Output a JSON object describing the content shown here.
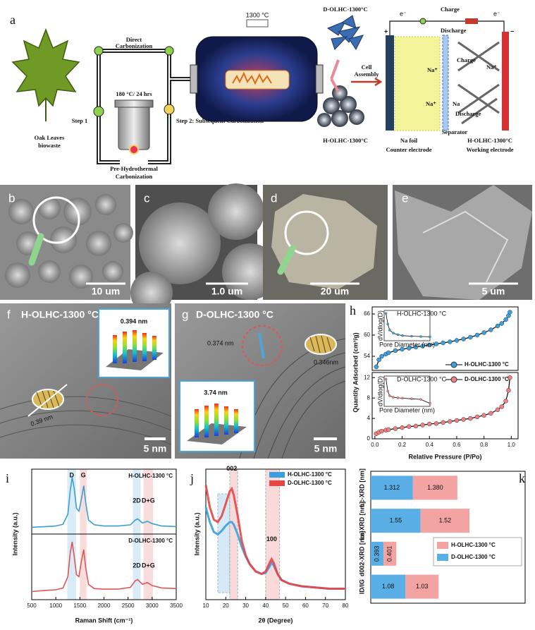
{
  "panel_a": {
    "label": "a",
    "leaf": [
      "Oak Leaves",
      "biowaste"
    ],
    "direct": [
      "Direct",
      "Carbonization"
    ],
    "step1": "Step 1",
    "condition": "180 °C/ 24 hrs",
    "pre_htc": [
      "Pre-Hydrothermal",
      "Carbonization"
    ],
    "step2": "Step 2: Subsequent Carbonization",
    "furnace_temp": "1300 °C",
    "d_product": "D-OLHC-1300°C",
    "h_product": "H-OLHC-1300°C",
    "cell_assembly": [
      "Cell",
      "Assembly"
    ],
    "electron": "e⁻",
    "charge": "Charge",
    "discharge": "Discharge",
    "plus": "+",
    "minus": "−",
    "na_ion": "Na⁺",
    "na": "Na",
    "na_foil": "Na foil",
    "counter": "Counter electrode",
    "separator": "Separator",
    "working_material": "H-OLHC-1300°C",
    "working": "Working electrode"
  },
  "panel_b": {
    "label": "b",
    "scale": "10 um"
  },
  "panel_c": {
    "label": "c",
    "scale": "1.0 um"
  },
  "panel_d": {
    "label": "d",
    "scale": "20 um"
  },
  "panel_e": {
    "label": "e",
    "scale": "5 um"
  },
  "panel_f": {
    "label": "f",
    "title": "H-OLHC-1300 °C",
    "inset_spacing": "0.394 nm",
    "fringe": "0.39 nm",
    "scale": "5 nm"
  },
  "panel_g": {
    "label": "g",
    "title": "D-OLHC-1300 °C",
    "fringe_1": "0.374 nm",
    "fringe_2": "0.346nm",
    "inset_spacing": "3.74 nm",
    "scale": "5 nm"
  },
  "chart_data": [
    {
      "type": "line",
      "panel_label": "h",
      "y_label": "Quantity Adsorbed (cm³/g)",
      "x_label": "Relative Pressure (P/Po)",
      "xlim": [
        -0.02,
        1.05
      ],
      "xticks": [
        {
          "value": 0,
          "label": "0.0"
        },
        0.2,
        0.4,
        0.6,
        0.8,
        {
          "value": 1,
          "label": "1.0"
        }
      ],
      "panels": [
        {
          "ylim": [
            50,
            68
          ],
          "yticks": [
            54,
            60,
            66
          ],
          "series": [
            {
              "name": "H-OLHC-1300 °C",
              "color": "#3ba0e0",
              "x": [
                0.01,
                0.03,
                0.05,
                0.08,
                0.1,
                0.15,
                0.2,
                0.25,
                0.3,
                0.35,
                0.4,
                0.45,
                0.5,
                0.55,
                0.6,
                0.65,
                0.7,
                0.75,
                0.8,
                0.85,
                0.9,
                0.93,
                0.96,
                0.98,
                0.99
              ],
              "values": [
                51,
                53,
                54,
                54.6,
                55,
                55.6,
                56,
                56.3,
                56.6,
                56.9,
                57.2,
                57.5,
                57.8,
                58.1,
                58.5,
                58.9,
                59.4,
                60,
                60.7,
                61.5,
                62.6,
                63.3,
                64.4,
                65.5,
                66.5
              ]
            }
          ],
          "inset": {
            "x_label": "Pore Diameter (nm)",
            "y_label": "dV/dlog(D)",
            "xlim": [
              0,
              50
            ],
            "ylim": [
              0,
              1
            ],
            "series": [
              {
                "name": "H-OLHC-1300 °C",
                "color": "#3ba0e0",
                "x": [
                  2,
                  4,
                  6,
                  10,
                  15,
                  20,
                  30,
                  40,
                  50
                ],
                "values": [
                  0.9,
                  0.55,
                  0.35,
                  0.25,
                  0.2,
                  0.17,
                  0.15,
                  0.14,
                  0.13
                ]
              }
            ]
          }
        },
        {
          "ylim": [
            0,
            13
          ],
          "yticks": [
            0,
            4,
            8,
            12
          ],
          "series": [
            {
              "name": "D-OLHC-1300 °C",
              "color": "#f08080",
              "x": [
                0.01,
                0.03,
                0.05,
                0.08,
                0.1,
                0.15,
                0.2,
                0.25,
                0.3,
                0.35,
                0.4,
                0.45,
                0.5,
                0.55,
                0.6,
                0.65,
                0.7,
                0.75,
                0.8,
                0.85,
                0.9,
                0.93,
                0.96,
                0.98,
                0.99
              ],
              "values": [
                1.0,
                1.3,
                1.5,
                1.7,
                1.8,
                2.0,
                2.2,
                2.4,
                2.5,
                2.7,
                2.9,
                3.0,
                3.2,
                3.4,
                3.6,
                3.8,
                4.0,
                4.3,
                4.6,
                5.0,
                5.7,
                6.3,
                7.4,
                9.5,
                12.0
              ]
            }
          ],
          "inset": {
            "x_label": "Pore Diameter (nm)",
            "y_label": "dV/dlog(D)",
            "xlim": [
              0,
              50
            ],
            "ylim": [
              0,
              1
            ],
            "series": [
              {
                "name": "D-OLHC-1300 °C",
                "color": "#f08080",
                "x": [
                  2,
                  4,
                  6,
                  10,
                  15,
                  20,
                  30,
                  40,
                  50
                ],
                "values": [
                  0.9,
                  0.5,
                  0.35,
                  0.3,
                  0.28,
                  0.27,
                  0.25,
                  0.23,
                  0.1
                ]
              }
            ]
          }
        }
      ]
    },
    {
      "type": "line",
      "panel_label": "i",
      "y_label": "Intensity (a.u.)",
      "x_label": "Raman Shift (cm⁻¹)",
      "xlim": [
        500,
        3500
      ],
      "xticks": [
        500,
        1000,
        1500,
        2000,
        2500,
        3000,
        3500
      ],
      "ylim": [
        0,
        1
      ],
      "bands": [
        {
          "label": "D",
          "from": 1240,
          "to": 1420,
          "color": "#cfe6f5"
        },
        {
          "label": "G",
          "from": 1500,
          "to": 1640,
          "color": "#f8d4d4"
        },
        {
          "label": "2D",
          "from": 2600,
          "to": 2760,
          "color": "#cfe6f5"
        },
        {
          "label": "D+G",
          "from": 2820,
          "to": 3020,
          "color": "#f8d4d4"
        }
      ],
      "panels": [
        {
          "series": [
            {
              "name": "H-OLHC-1300 °C",
              "color": "#3a9fcf",
              "x": [
                500,
                800,
                1000,
                1150,
                1250,
                1300,
                1340,
                1380,
                1430,
                1480,
                1530,
                1580,
                1620,
                1680,
                1800,
                2000,
                2300,
                2550,
                2650,
                2700,
                2800,
                2900,
                3000,
                3200,
                3500
              ],
              "values": [
                0.08,
                0.09,
                0.1,
                0.13,
                0.3,
                0.7,
                0.92,
                0.75,
                0.4,
                0.35,
                0.55,
                0.78,
                0.5,
                0.2,
                0.12,
                0.1,
                0.1,
                0.12,
                0.2,
                0.22,
                0.15,
                0.18,
                0.14,
                0.1,
                0.09
              ]
            }
          ]
        },
        {
          "series": [
            {
              "name": "D-OLHC-1300 °C",
              "color": "#e05555",
              "x": [
                500,
                800,
                1000,
                1150,
                1250,
                1300,
                1340,
                1380,
                1430,
                1480,
                1530,
                1580,
                1620,
                1680,
                1800,
                2000,
                2300,
                2550,
                2650,
                2700,
                2800,
                2900,
                3000,
                3200,
                3500
              ],
              "values": [
                0.1,
                0.12,
                0.13,
                0.16,
                0.35,
                0.75,
                0.93,
                0.7,
                0.38,
                0.35,
                0.6,
                0.8,
                0.5,
                0.22,
                0.15,
                0.14,
                0.14,
                0.17,
                0.28,
                0.3,
                0.22,
                0.25,
                0.2,
                0.16,
                0.15
              ]
            }
          ]
        }
      ]
    },
    {
      "type": "line",
      "panel_label": "j",
      "y_label": "Intensity (a.u.)",
      "x_label": "2θ (Degree)",
      "xlim": [
        10,
        80
      ],
      "xticks": [
        10,
        20,
        30,
        40,
        50,
        60,
        70,
        80
      ],
      "ylim": [
        0,
        1
      ],
      "regions": [
        {
          "from": 16,
          "to": 22,
          "color": "#cfe6f5"
        },
        {
          "from": 22,
          "to": 26,
          "color": "#f8d4d4"
        },
        {
          "from": 40,
          "to": 47,
          "color": "#f8d4d4"
        }
      ],
      "peaks": [
        {
          "label": "002",
          "x": 23
        },
        {
          "label": "100",
          "x": 43
        }
      ],
      "series": [
        {
          "name": "H-OLHC-1300 °C",
          "color": "#3a9fdf",
          "x": [
            10,
            12,
            14,
            16,
            18,
            20,
            22,
            23,
            24,
            26,
            28,
            30,
            32,
            35,
            38,
            40,
            42,
            43,
            44,
            46,
            48,
            52,
            58,
            65,
            72,
            80
          ],
          "values": [
            0.72,
            0.6,
            0.52,
            0.5,
            0.53,
            0.57,
            0.6,
            0.6,
            0.58,
            0.5,
            0.4,
            0.32,
            0.26,
            0.2,
            0.18,
            0.19,
            0.24,
            0.27,
            0.25,
            0.18,
            0.13,
            0.1,
            0.08,
            0.07,
            0.06,
            0.06
          ]
        },
        {
          "name": "D-OLHC-1300 °C",
          "color": "#e84545",
          "x": [
            10,
            12,
            14,
            16,
            18,
            20,
            22,
            23,
            24,
            26,
            28,
            30,
            32,
            35,
            38,
            40,
            42,
            43,
            44,
            46,
            48,
            52,
            58,
            65,
            72,
            80
          ],
          "values": [
            0.9,
            0.72,
            0.62,
            0.6,
            0.65,
            0.75,
            0.85,
            0.87,
            0.82,
            0.65,
            0.45,
            0.33,
            0.26,
            0.2,
            0.18,
            0.2,
            0.27,
            0.3,
            0.27,
            0.18,
            0.13,
            0.1,
            0.08,
            0.07,
            0.06,
            0.06
          ]
        }
      ]
    },
    {
      "type": "bar",
      "orientation": "horizontal",
      "stacked": true,
      "panel_label": "k",
      "categories": [
        "Lc-XRD [nm]",
        "La-XRD [nm]",
        "d002-XRD [nm]",
        "ID/IG"
      ],
      "xlim": [
        0,
        4.8
      ],
      "series": [
        {
          "name": "D-OLHC-1300 °C",
          "color": "#5aaee6",
          "values": [
            1.312,
            1.55,
            0.393,
            1.08
          ],
          "value_labels": [
            "1.312",
            "1.55",
            "0.393",
            "1.08"
          ]
        },
        {
          "name": "H-OLHC-1300 °C",
          "color": "#f4a3a3",
          "values": [
            1.38,
            1.52,
            0.401,
            1.03
          ],
          "value_labels": [
            "1.380",
            "1.52",
            "0.401",
            "1.03"
          ]
        }
      ]
    }
  ]
}
